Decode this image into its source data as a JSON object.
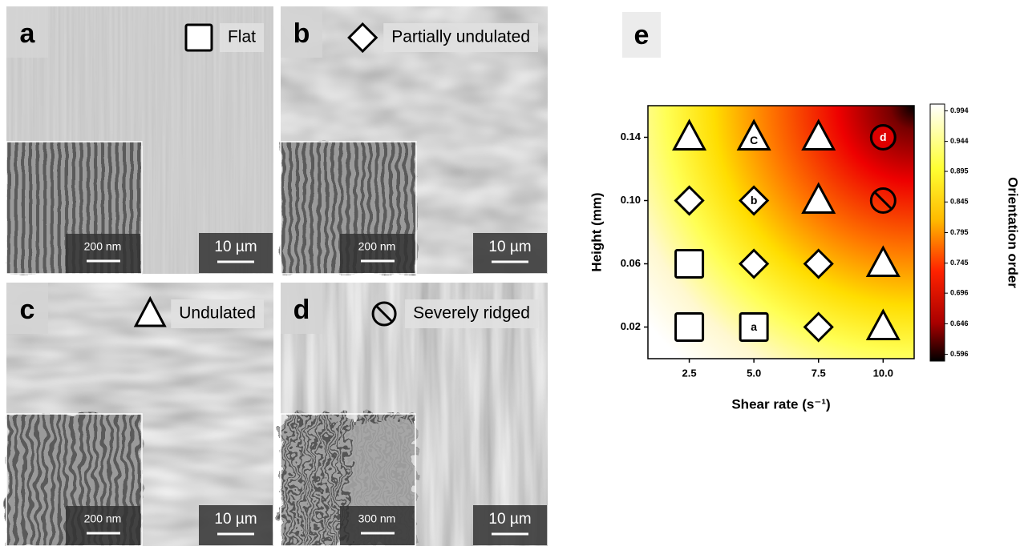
{
  "panels": [
    {
      "letter": "a",
      "inset_scale": "200 nm",
      "scale": "10 µm"
    },
    {
      "letter": "b",
      "inset_scale": "200 nm",
      "scale": "10 µm"
    },
    {
      "letter": "c",
      "inset_scale": "200 nm",
      "scale": "10 µm"
    },
    {
      "letter": "d",
      "inset_scale": "300 nm",
      "scale": "10 µm"
    }
  ],
  "chart_panel": {
    "letter": "e"
  },
  "chart_data": {
    "type": "scatter",
    "x_label": "Shear rate (s⁻¹)",
    "y_label": "Height (mm)",
    "xlim": [
      0.9,
      11.2
    ],
    "ylim": [
      0,
      0.16
    ],
    "xticks": [
      2.5,
      {
        "value": 5,
        "label": "5.0"
      },
      7.5,
      {
        "value": 10,
        "label": "10.0"
      }
    ],
    "yticks": [
      0.02,
      0.06,
      {
        "value": 0.1,
        "label": "0.10"
      },
      0.14
    ],
    "colorbar": {
      "label": "Orientation order",
      "lim": [
        0.585,
        1.005
      ],
      "ticks": [
        0.994,
        0.944,
        0.895,
        0.845,
        0.795,
        0.745,
        0.696,
        0.646,
        0.596
      ]
    },
    "series": [
      {
        "name": "Flat",
        "marker": "square",
        "color": "#000000",
        "x": [
          2.5,
          2.5,
          5
        ],
        "values": [
          0.06,
          0.02,
          0.02
        ],
        "point_labels": [
          null,
          null,
          "a"
        ]
      },
      {
        "name": "Partially undulated",
        "marker": "diamond",
        "color": "#000000",
        "x": [
          2.5,
          5,
          5,
          7.5,
          7.5
        ],
        "values": [
          0.1,
          0.1,
          0.06,
          0.06,
          0.02
        ],
        "point_labels": [
          null,
          "b",
          null,
          null,
          null
        ]
      },
      {
        "name": "Undulated",
        "marker": "triangle",
        "color": "#000000",
        "x": [
          2.5,
          5,
          7.5,
          7.5,
          10,
          10
        ],
        "values": [
          0.14,
          0.14,
          0.14,
          0.1,
          0.06,
          0.02
        ],
        "point_labels": [
          null,
          "C",
          null,
          null,
          null,
          null
        ]
      },
      {
        "name": "Severely ridged",
        "marker": "ridged",
        "color": "#000000",
        "x": [
          10,
          10
        ],
        "values": [
          0.14,
          0.1
        ],
        "point_labels": [
          "d",
          null
        ]
      }
    ]
  }
}
